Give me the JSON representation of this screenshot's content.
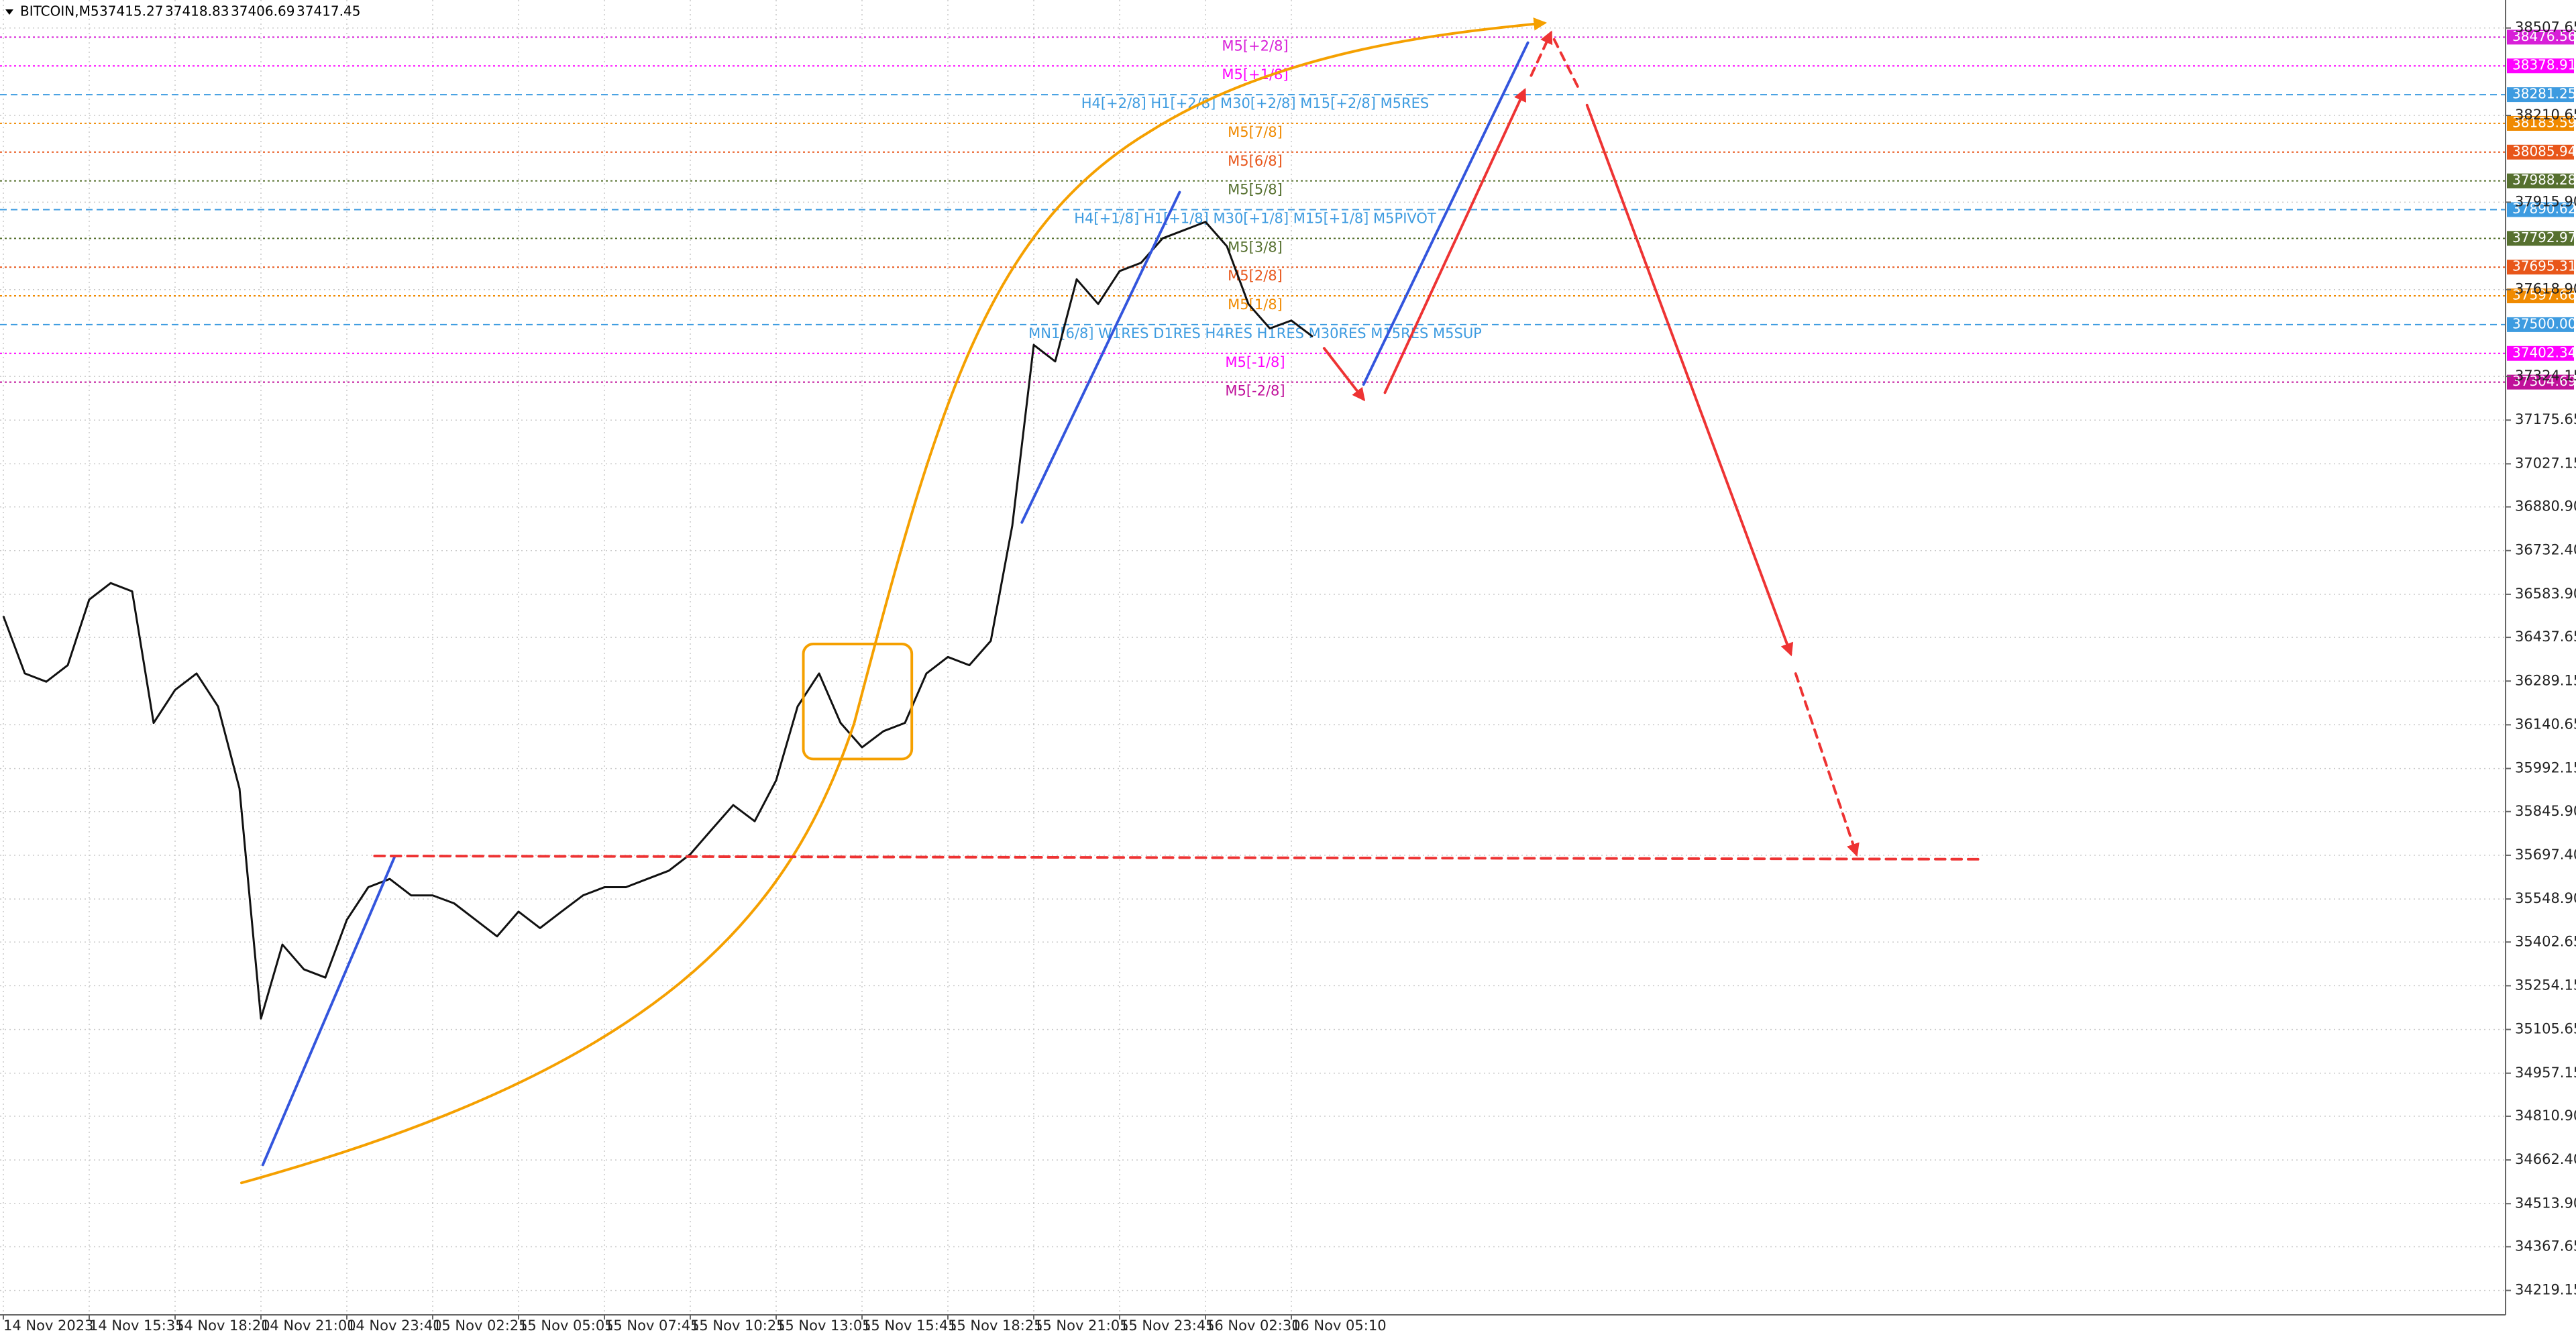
{
  "chart_data": {
    "type": "line",
    "title": "BITCOIN,M5",
    "ohlc": [
      37415.27,
      37418.83,
      37406.69,
      37417.45
    ],
    "categories": [
      "14 Nov 2023",
      null,
      null,
      null,
      "14 Nov 15:35",
      null,
      null,
      null,
      "14 Nov 18:20",
      null,
      null,
      null,
      "14 Nov 21:00",
      null,
      null,
      null,
      "14 Nov 23:40",
      null,
      null,
      null,
      "15 Nov 02:25",
      null,
      null,
      null,
      "15 Nov 05:05",
      null,
      null,
      null,
      "15 Nov 07:45",
      null,
      null,
      null,
      "15 Nov 10:25",
      null,
      null,
      null,
      "15 Nov 13:05",
      null,
      null,
      null,
      "15 Nov 15:45",
      null,
      null,
      null,
      "15 Nov 18:25",
      null,
      null,
      null,
      "15 Nov 21:05",
      null,
      null,
      null,
      "15 Nov 23:45",
      null,
      null,
      null,
      "16 Nov 02:30",
      null,
      null,
      null,
      "16 Nov 05:10",
      null
    ],
    "series": [
      {
        "color": "#111111",
        "values": [
          36510,
          36315,
          36287,
          36343,
          36566,
          36622,
          36594,
          36147,
          36259,
          36315,
          36203,
          35924,
          35143,
          35394,
          35310,
          35282,
          35478,
          35589,
          35617,
          35561,
          35561,
          35534,
          35478,
          35422,
          35506,
          35450,
          35506,
          35561,
          35589,
          35589,
          35617,
          35645,
          35701,
          35785,
          35868,
          35813,
          35952,
          36203,
          36315,
          36147,
          36064,
          36119,
          36147,
          36315,
          36371,
          36343,
          36426,
          36817,
          37431,
          37375,
          37654,
          37570,
          37682,
          37710,
          37793,
          37821,
          37849,
          37766,
          37570,
          37487,
          37514,
          37459
        ]
      }
    ],
    "ylim": [
      34138.5,
      38591.35
    ],
    "yticks": [
      {
        "value": 38507.65,
        "label": "38507.65"
      },
      {
        "value": 38210.65,
        "label": "38210.65"
      },
      {
        "value": 37915.9,
        "label": "37915.90"
      },
      {
        "value": 37618.9,
        "label": "37618.90"
      },
      {
        "value": 37324.15,
        "label": "37324.15"
      },
      {
        "value": 37175.65,
        "label": "37175.65"
      },
      {
        "value": 37027.15,
        "label": "37027.15"
      },
      {
        "value": 36880.9,
        "label": "36880.90"
      },
      {
        "value": 36732.4,
        "label": "36732.40"
      },
      {
        "value": 36583.9,
        "label": "36583.90"
      },
      {
        "value": 36437.65,
        "label": "36437.65"
      },
      {
        "value": 36289.15,
        "label": "36289.15"
      },
      {
        "value": 36140.65,
        "label": "36140.65"
      },
      {
        "value": 35992.15,
        "label": "35992.15"
      },
      {
        "value": 35845.9,
        "label": "35845.90"
      },
      {
        "value": 35697.4,
        "label": "35697.40"
      },
      {
        "value": 35548.9,
        "label": "35548.90"
      },
      {
        "value": 35402.65,
        "label": "35402.65"
      },
      {
        "value": 35254.15,
        "label": "35254.15"
      },
      {
        "value": 35105.65,
        "label": "35105.65"
      },
      {
        "value": 34957.15,
        "label": "34957.15"
      },
      {
        "value": 34810.9,
        "label": "34810.90"
      },
      {
        "value": 34662.4,
        "label": "34662.40"
      },
      {
        "value": 34513.9,
        "label": "34513.90"
      },
      {
        "value": 34367.65,
        "label": "34367.65"
      },
      {
        "value": 34219.15,
        "label": "34219.15"
      }
    ],
    "grid": true,
    "levels": [
      {
        "name": "M5[+2/8]",
        "value": 38476.56,
        "value_label": "38476.56",
        "color": "#d81fd8"
      },
      {
        "name": "M5[+1/8]",
        "value": 38378.91,
        "value_label": "38378.91",
        "color": "#ff00ff"
      },
      {
        "name": "H4[+2/8] H1[+2/8] M30[+2/8] M15[+2/8] M5RES",
        "value": 38281.25,
        "value_label": "38281.25",
        "color": "#3d9be0"
      },
      {
        "name": "M5[7/8]",
        "value": 38183.59,
        "value_label": "38183.59",
        "color": "#f08a00"
      },
      {
        "name": "M5[6/8]",
        "value": 38085.94,
        "value_label": "38085.94",
        "color": "#e8561a"
      },
      {
        "name": "M5[5/8]",
        "value": 37988.28,
        "value_label": "37988.28",
        "color": "#56702f"
      },
      {
        "name": "H4[+1/8] H1[+1/8] M30[+1/8] M15[+1/8] M5PIVOT",
        "value": 37890.62,
        "value_label": "37890.62",
        "color": "#3d9be0"
      },
      {
        "name": "M5[3/8]",
        "value": 37792.97,
        "value_label": "37792.97",
        "color": "#56702f"
      },
      {
        "name": "M5[2/8]",
        "value": 37695.31,
        "value_label": "37695.31",
        "color": "#e8561a"
      },
      {
        "name": "M5[1/8]",
        "value": 37597.66,
        "value_label": "37597.66",
        "color": "#f08a00"
      },
      {
        "name": "MN1[6/8] W1RES D1RES H4RES H1RES M30RES M15RES M5SUP",
        "value": 37500.0,
        "value_label": "37500.00",
        "color": "#3d9be0"
      },
      {
        "name": "M5[-1/8]",
        "value": 37402.34,
        "value_label": "37402.34",
        "color": "#ff00ff"
      },
      {
        "name": "M5[-2/8]",
        "value": 37304.69,
        "value_label": "37304.69",
        "color": "#c0109a"
      }
    ]
  }
}
